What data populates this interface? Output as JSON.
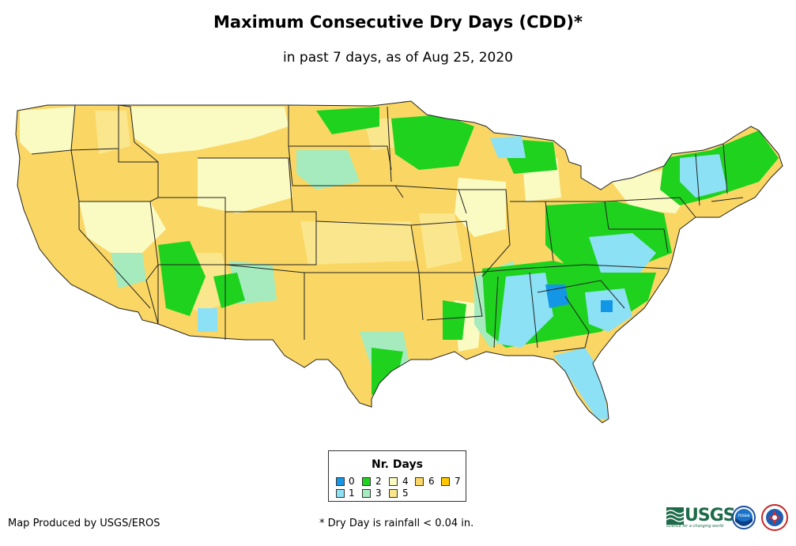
{
  "title": "Maximum Consecutive Dry Days (CDD)*",
  "subtitle": "in past 7 days, as of Aug 25, 2020",
  "legend": {
    "title": "Nr. Days",
    "items": [
      {
        "label": "0",
        "color": "#1496e6"
      },
      {
        "label": "1",
        "color": "#8ce1f5"
      },
      {
        "label": "2",
        "color": "#1ed21e"
      },
      {
        "label": "3",
        "color": "#a5ebbe"
      },
      {
        "label": "4",
        "color": "#fafac3"
      },
      {
        "label": "5",
        "color": "#fae68c"
      },
      {
        "label": "6",
        "color": "#fad764"
      },
      {
        "label": "7",
        "color": "#ffc800"
      }
    ]
  },
  "footer": {
    "credit": "Map Produced by USGS/EROS",
    "footnote": "* Dry Day is rainfall < 0.04 in."
  },
  "logos": {
    "usgs_text": "USGS",
    "usgs_tagline": "science for a changing world",
    "noaa_text": "noaa"
  }
}
